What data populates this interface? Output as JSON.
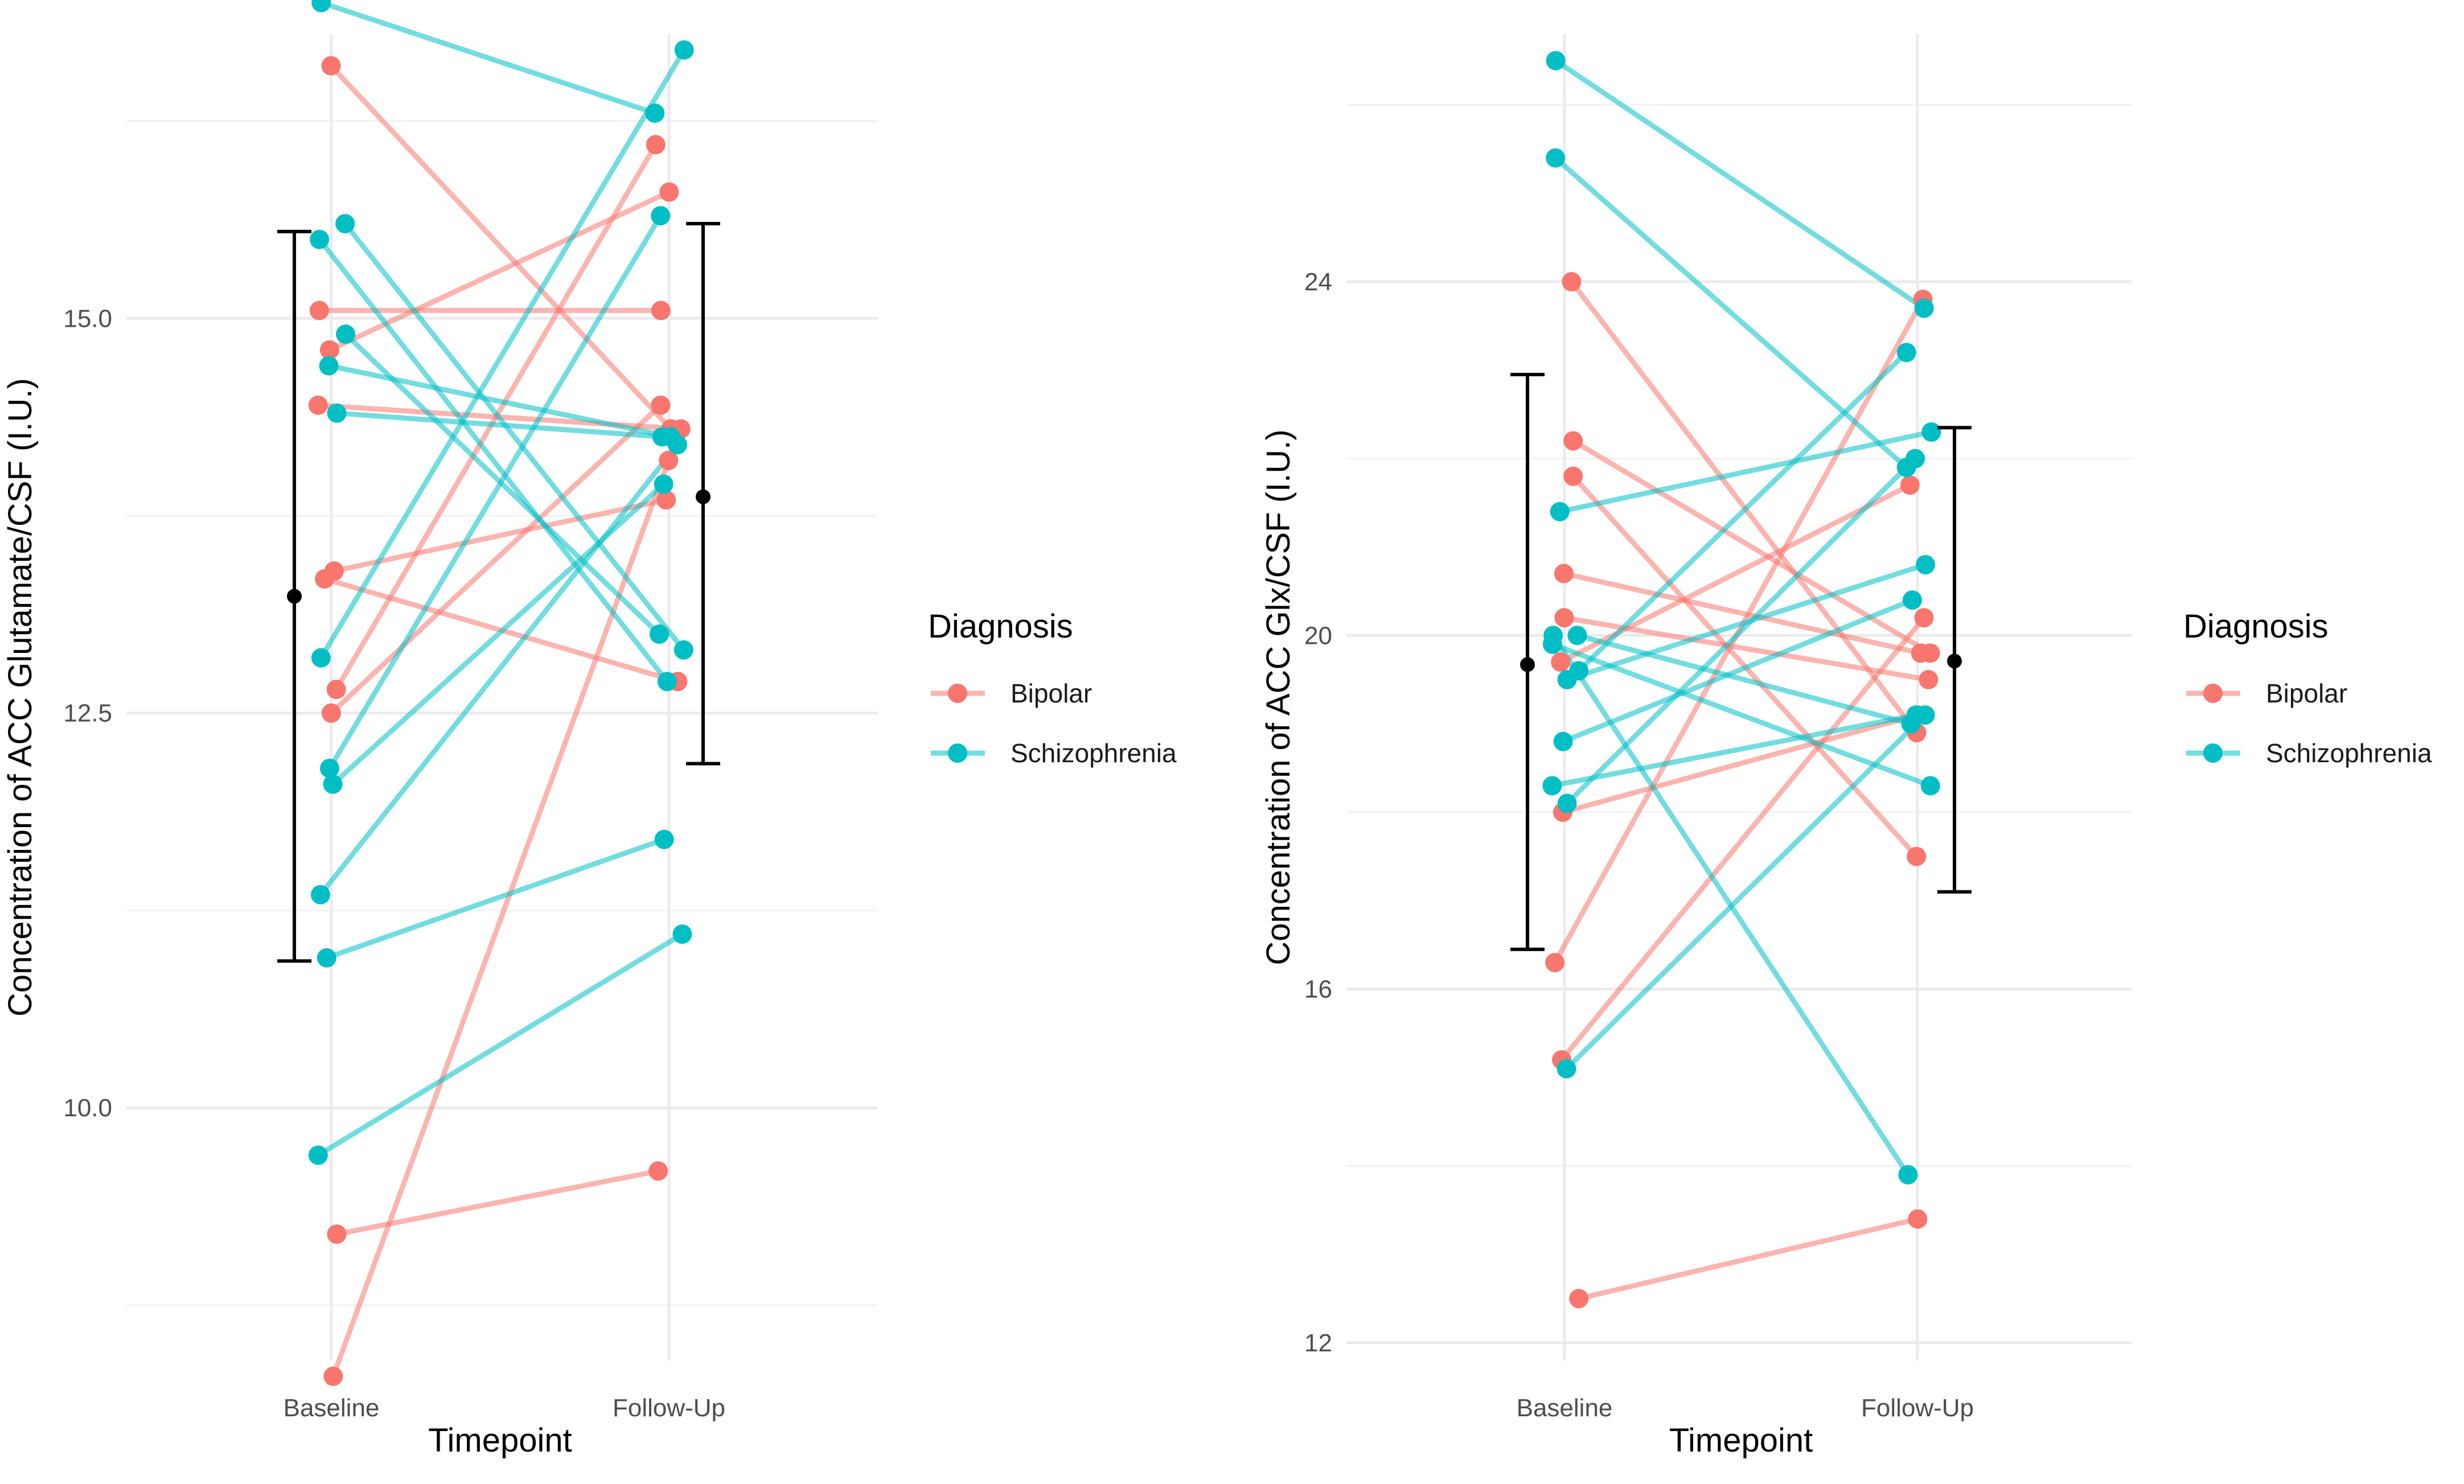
{
  "chart_data": [
    {
      "type": "line",
      "title": "",
      "xlabel": "Timepoint",
      "ylabel": "Concentration of ACC Glutamate/CSF (I.U.)",
      "categories": [
        "Baseline",
        "Follow-Up"
      ],
      "ylim": [
        8.4,
        16.8
      ],
      "yticks": [
        10.0,
        12.5,
        15.0
      ],
      "ytick_labels": [
        "10.0",
        "12.5",
        "15.0"
      ],
      "minor_yticks": [
        8.75,
        11.25,
        13.75,
        16.25
      ],
      "legend": {
        "title": "Diagnosis",
        "position": "right",
        "entries": [
          "Bipolar",
          "Schizophrenia"
        ]
      },
      "colors": {
        "Bipolar": "#F8766D",
        "Schizophrenia": "#00BFC4"
      },
      "series": [
        {
          "name": "Bipolar",
          "pairs": [
            [
              16.6,
              14.3
            ],
            [
              15.05,
              15.05
            ],
            [
              14.8,
              15.8
            ],
            [
              14.45,
              14.3
            ],
            [
              13.4,
              13.85
            ],
            [
              13.35,
              12.7
            ],
            [
              12.65,
              16.1
            ],
            [
              12.5,
              14.45
            ],
            [
              9.2,
              9.6
            ],
            [
              8.3,
              14.1
            ]
          ]
        },
        {
          "name": "Schizophrenia",
          "pairs": [
            [
              17.0,
              16.3
            ],
            [
              15.6,
              12.9
            ],
            [
              15.5,
              12.7
            ],
            [
              14.9,
              13.0
            ],
            [
              14.7,
              14.25
            ],
            [
              14.4,
              14.25
            ],
            [
              12.85,
              16.7
            ],
            [
              12.15,
              15.65
            ],
            [
              12.05,
              13.95
            ],
            [
              11.35,
              14.2
            ],
            [
              10.95,
              11.7
            ],
            [
              9.7,
              11.1
            ]
          ]
        }
      ],
      "summary": [
        {
          "category": "Baseline",
          "mean": 13.24,
          "lower": 10.93,
          "upper": 15.55
        },
        {
          "category": "Follow-Up",
          "mean": 13.87,
          "lower": 12.18,
          "upper": 15.6
        }
      ]
    },
    {
      "type": "line",
      "title": "",
      "xlabel": "Timepoint",
      "ylabel": "Concentration of ACC Glx/CSF (I.U.)",
      "categories": [
        "Baseline",
        "Follow-Up"
      ],
      "ylim": [
        11.8,
        26.8
      ],
      "yticks": [
        12,
        16,
        20,
        24
      ],
      "ytick_labels": [
        "12",
        "16",
        "20",
        "24"
      ],
      "minor_yticks": [
        14,
        18,
        22,
        26
      ],
      "legend": {
        "title": "Diagnosis",
        "position": "right",
        "entries": [
          "Bipolar",
          "Schizophrenia"
        ]
      },
      "colors": {
        "Bipolar": "#F8766D",
        "Schizophrenia": "#00BFC4"
      },
      "series": [
        {
          "name": "Bipolar",
          "pairs": [
            [
              24.0,
              18.9
            ],
            [
              22.2,
              19.8
            ],
            [
              21.8,
              17.5
            ],
            [
              20.7,
              19.8
            ],
            [
              20.2,
              19.5
            ],
            [
              19.7,
              21.7
            ],
            [
              18.0,
              19.1
            ],
            [
              16.3,
              23.8
            ],
            [
              15.2,
              20.2
            ],
            [
              12.5,
              13.4
            ]
          ]
        },
        {
          "name": "Schizophrenia",
          "pairs": [
            [
              26.5,
              23.7
            ],
            [
              25.4,
              21.9
            ],
            [
              21.4,
              22.3
            ],
            [
              20.0,
              19.0
            ],
            [
              19.9,
              18.3
            ],
            [
              19.6,
              23.2
            ],
            [
              19.5,
              20.8
            ],
            [
              18.8,
              20.4
            ],
            [
              18.3,
              19.1
            ],
            [
              18.1,
              22.0
            ],
            [
              15.1,
              19.1
            ],
            [
              20.0,
              13.9
            ]
          ]
        }
      ],
      "summary": [
        {
          "category": "Baseline",
          "mean": 19.67,
          "lower": 16.45,
          "upper": 22.95
        },
        {
          "category": "Follow-Up",
          "mean": 19.71,
          "lower": 17.1,
          "upper": 22.35
        }
      ]
    }
  ]
}
